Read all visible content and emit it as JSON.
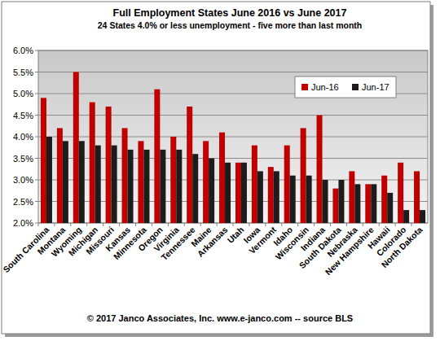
{
  "chart_data": {
    "type": "bar",
    "title": "Full Employment States June 2016 vs June 2017",
    "subtitle": "24 States  4.0% or less unemployment - five more than last month",
    "annotations": [
      "© 2017 Janco Associates, Inc. www.e-janco.com -- source BLS"
    ],
    "categories": [
      "South Carolina",
      "Montana",
      "Wyoming",
      "Michigan",
      "Missouri",
      "Kansas",
      "Minnesota",
      "Oregon",
      "Virginia",
      "Tennessee",
      "Maine",
      "Arkansas",
      "Utah",
      "Iowa",
      "Vermont",
      "Idaho",
      "Wisconsin",
      "Indiana",
      "South Dakota",
      "Nebraska",
      "New Hampshire",
      "Hawaii",
      "Colorado",
      "North Dakota"
    ],
    "series": [
      {
        "name": "Jun-16",
        "color": "#c00000",
        "values": [
          4.9,
          4.2,
          5.5,
          4.8,
          4.7,
          4.2,
          3.9,
          5.1,
          4.0,
          4.7,
          3.9,
          4.1,
          3.4,
          3.8,
          3.3,
          3.8,
          4.2,
          4.5,
          2.8,
          3.2,
          2.9,
          3.1,
          3.4,
          3.2
        ]
      },
      {
        "name": "Jun-17",
        "color": "#1c1c1c",
        "values": [
          4.0,
          3.9,
          3.9,
          3.8,
          3.8,
          3.7,
          3.7,
          3.7,
          3.7,
          3.6,
          3.5,
          3.4,
          3.4,
          3.2,
          3.2,
          3.1,
          3.1,
          3.0,
          3.0,
          2.9,
          2.9,
          2.7,
          2.3,
          2.3
        ]
      }
    ],
    "ylim": [
      2.0,
      6.0
    ],
    "yticks": [
      {
        "value": 2.0,
        "label": "2.0%"
      },
      {
        "value": 2.5,
        "label": "2.5%"
      },
      {
        "value": 3.0,
        "label": "3.0%"
      },
      {
        "value": 3.5,
        "label": "3.5%"
      },
      {
        "value": 4.0,
        "label": "4.0%"
      },
      {
        "value": 4.5,
        "label": "4.5%"
      },
      {
        "value": 5.0,
        "label": "5.0%"
      },
      {
        "value": 5.5,
        "label": "5.5%"
      },
      {
        "value": 6.0,
        "label": "6.0%"
      }
    ],
    "grid": true,
    "legend": "upper right"
  }
}
